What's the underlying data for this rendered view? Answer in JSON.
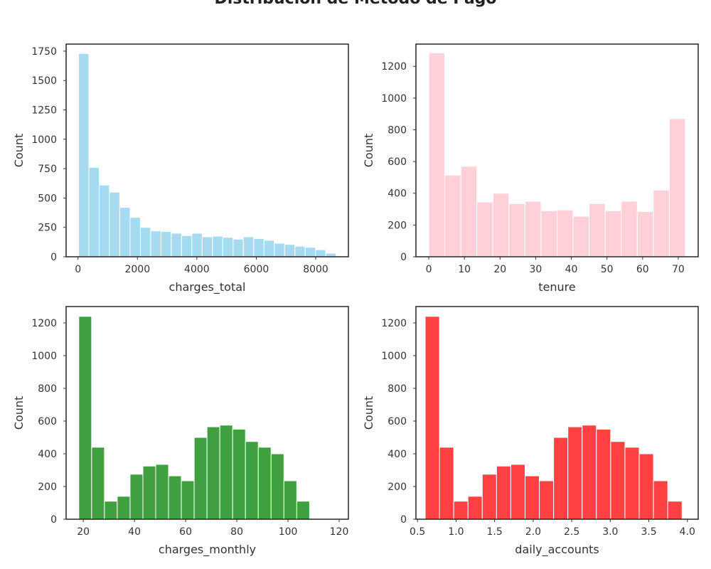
{
  "figure": {
    "title": "Distribución de Método de Pago"
  },
  "chart_data": [
    {
      "type": "bar",
      "xlabel": "charges_total",
      "ylabel": "Count",
      "color": "#87ceeb",
      "xlim": [
        -400,
        9100
      ],
      "ylim": [
        0,
        1810
      ],
      "xticks": [
        0,
        2000,
        4000,
        6000,
        8000
      ],
      "yticks": [
        0,
        250,
        500,
        750,
        1000,
        1250,
        1500,
        1750
      ],
      "bin_start": 18.8,
      "bin_width": 346.7,
      "values": [
        1730,
        760,
        610,
        550,
        420,
        335,
        250,
        220,
        215,
        200,
        180,
        200,
        170,
        175,
        165,
        150,
        170,
        155,
        140,
        115,
        105,
        90,
        80,
        60,
        30
      ]
    },
    {
      "type": "bar",
      "xlabel": "tenure",
      "ylabel": "Count",
      "color": "#ffc0cb",
      "xlim": [
        -3.6,
        75.6
      ],
      "ylim": [
        0,
        1340
      ],
      "xticks": [
        0,
        10,
        20,
        30,
        40,
        50,
        60,
        70
      ],
      "yticks": [
        0,
        200,
        400,
        600,
        800,
        1000,
        1200
      ],
      "bin_start": 0,
      "bin_width": 4.5,
      "values": [
        1285,
        515,
        570,
        345,
        400,
        335,
        350,
        290,
        295,
        255,
        335,
        290,
        350,
        285,
        420,
        870
      ]
    },
    {
      "type": "bar",
      "xlabel": "charges_monthly",
      "ylabel": "Count",
      "color": "#008000",
      "xlim": [
        13.3,
        123.6
      ],
      "ylim": [
        0,
        1300
      ],
      "xticks": [
        20,
        40,
        60,
        80,
        100,
        120
      ],
      "yticks": [
        0,
        200,
        400,
        600,
        800,
        1000,
        1200
      ],
      "bin_start": 18.25,
      "bin_width": 5.01,
      "values": [
        1240,
        440,
        110,
        140,
        275,
        325,
        335,
        265,
        235,
        500,
        565,
        575,
        550,
        475,
        440,
        400,
        235,
        110
      ]
    },
    {
      "type": "bar",
      "xlabel": "daily_accounts",
      "ylabel": "Count",
      "color": "#ff0000",
      "xlim": [
        0.48,
        4.14
      ],
      "ylim": [
        0,
        1300
      ],
      "xticks": [
        0.5,
        1.0,
        1.5,
        2.0,
        2.5,
        3.0,
        3.5,
        4.0
      ],
      "yticks": [
        0,
        200,
        400,
        600,
        800,
        1000,
        1200
      ],
      "bin_start": 0.6,
      "bin_width": 0.185,
      "values": [
        1240,
        440,
        110,
        140,
        275,
        325,
        335,
        265,
        235,
        500,
        565,
        575,
        550,
        475,
        440,
        400,
        235,
        110
      ]
    }
  ]
}
